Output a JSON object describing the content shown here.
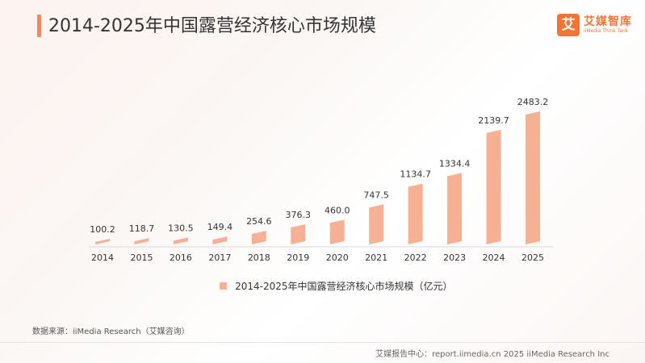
{
  "title": "2014-2025年中国露营经济核心市场规模",
  "logo": {
    "main": "艾媒智库",
    "sub": "iiMedia Think Tank",
    "mark": "艾"
  },
  "chart_data": {
    "type": "bar",
    "categories": [
      "2014",
      "2015",
      "2016",
      "2017",
      "2018",
      "2019",
      "2020",
      "2021",
      "2022",
      "2023",
      "2024",
      "2025"
    ],
    "series": [
      {
        "name": "2014-2025年中国露营经济核心市场规模（亿元）",
        "values": [
          100.2,
          118.7,
          130.5,
          149.4,
          254.6,
          376.3,
          460.0,
          747.5,
          1134.7,
          1334.4,
          2139.7,
          2483.2
        ]
      }
    ],
    "data_labels": [
      "100.2",
      "118.7",
      "130.5",
      "149.4",
      "254.6",
      "376.3",
      "460.0",
      "747.5",
      "1134.7",
      "1334.4",
      "2139.7",
      "2483.2"
    ],
    "ylim": [
      0,
      2483.2
    ],
    "bar_color": "#f6b094",
    "legend_position": "bottom"
  },
  "source": "数据来源：iiMedia Research（艾媒咨询）",
  "footer": "艾媒报告中心：report.iimedia.cn   2025 iiMedia Research Inc"
}
